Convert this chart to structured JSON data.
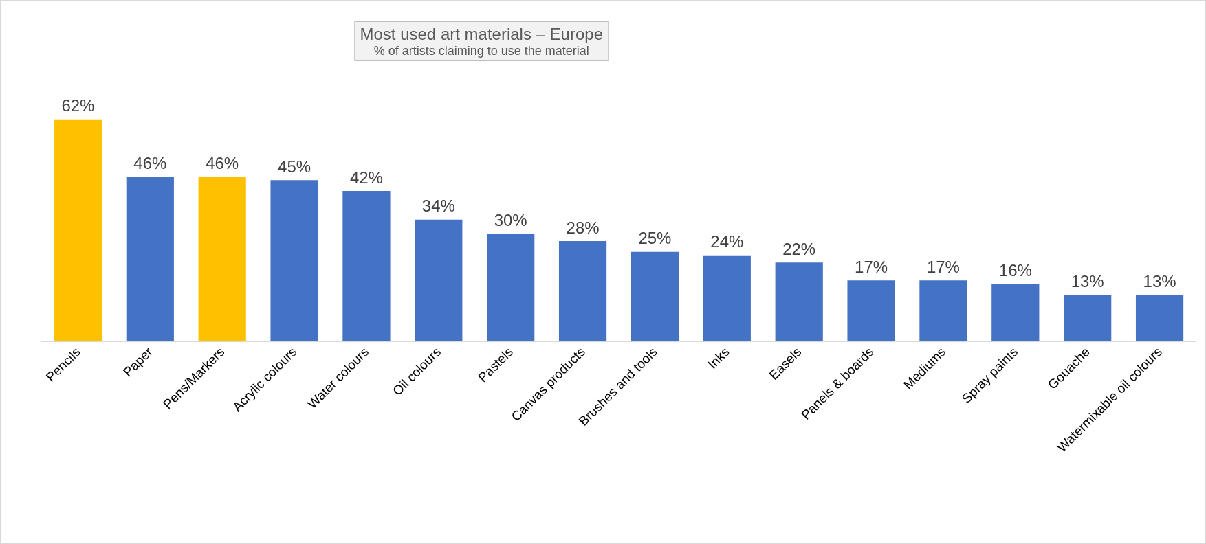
{
  "chart_data": {
    "type": "bar",
    "title": "Most used art materials – Europe",
    "subtitle": "% of artists claiming to use the material",
    "categories": [
      "Pencils",
      "Paper",
      "Pens/Markers",
      "Acrylic colours",
      "Water colours",
      "Oil colours",
      "Pastels",
      "Canvas products",
      "Brushes and tools",
      "Inks",
      "Easels",
      "Panels & boards",
      "Mediums",
      "Spray paints",
      "Gouache",
      "Watermixable oil colours"
    ],
    "values": [
      62,
      46,
      46,
      45,
      42,
      34,
      30,
      28,
      25,
      24,
      22,
      17,
      17,
      16,
      13,
      13
    ],
    "colors": [
      "#ffc000",
      "#4472c4",
      "#ffc000",
      "#4472c4",
      "#4472c4",
      "#4472c4",
      "#4472c4",
      "#4472c4",
      "#4472c4",
      "#4472c4",
      "#4472c4",
      "#4472c4",
      "#4472c4",
      "#4472c4",
      "#4472c4",
      "#4472c4"
    ],
    "value_labels": [
      "62%",
      "46%",
      "46%",
      "45%",
      "42%",
      "34%",
      "30%",
      "28%",
      "25%",
      "24%",
      "22%",
      "17%",
      "17%",
      "16%",
      "13%",
      "13%"
    ]
  }
}
